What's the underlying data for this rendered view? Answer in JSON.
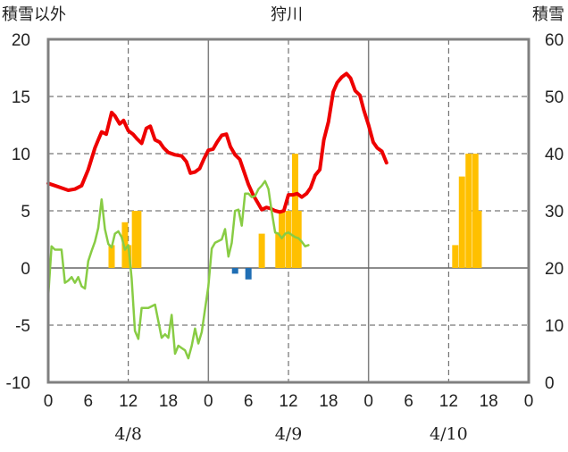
{
  "chart_data": {
    "type": "bar+line",
    "title": "狩川",
    "left_axis_label": "積雪以外",
    "right_axis_label": "積雪",
    "y_left": {
      "min": -10,
      "max": 20,
      "ticks": [
        "20",
        "15",
        "10",
        "5",
        "0",
        "-5",
        "-10"
      ],
      "tick_values": [
        20,
        15,
        10,
        5,
        0,
        -5,
        -10
      ]
    },
    "y_right": {
      "min": 0,
      "max": 60,
      "ticks": [
        "60",
        "50",
        "40",
        "30",
        "20",
        "10",
        "0"
      ],
      "tick_values": [
        60,
        50,
        40,
        30,
        20,
        10,
        0
      ]
    },
    "x": {
      "min_hour": 0,
      "max_hour": 72,
      "tick_hours": [
        0,
        6,
        12,
        18,
        24,
        30,
        36,
        42,
        48,
        54,
        60,
        66,
        72
      ],
      "tick_labels": [
        "0",
        "6",
        "12",
        "18",
        "0",
        "6",
        "12",
        "18",
        "0",
        "6",
        "12",
        "18",
        "0"
      ]
    },
    "date_labels": [
      "4/8",
      "4/9",
      "4/10"
    ],
    "date_label_hours": [
      12,
      36,
      60
    ],
    "day_divider_hours": [
      24,
      48
    ],
    "dashed_hours": [
      12,
      36,
      60
    ],
    "dashed_y_left": [
      15,
      10,
      5,
      -5
    ],
    "grid": true,
    "colors": {
      "red": "#ee0000",
      "green": "#88cc44",
      "orange": "#ffc000",
      "blue": "#1f6eb4",
      "purple": "#7030a0",
      "frame": "#808080"
    },
    "series": [
      {
        "color": "red",
        "axis": "left",
        "type": "line",
        "points": [
          [
            0,
            7.4
          ],
          [
            1,
            7.2
          ],
          [
            2,
            7.0
          ],
          [
            3,
            6.8
          ],
          [
            4,
            6.9
          ],
          [
            5,
            7.2
          ],
          [
            6,
            8.6
          ],
          [
            7,
            10.5
          ],
          [
            7.5,
            11.2
          ],
          [
            8,
            11.9
          ],
          [
            8.7,
            11.7
          ],
          [
            9.5,
            13.6
          ],
          [
            10,
            13.3
          ],
          [
            10.7,
            12.6
          ],
          [
            11.3,
            12.9
          ],
          [
            12,
            12.0
          ],
          [
            12.7,
            11.7
          ],
          [
            13.3,
            11.3
          ],
          [
            14,
            10.9
          ],
          [
            14.7,
            12.2
          ],
          [
            15.3,
            12.4
          ],
          [
            16,
            11.2
          ],
          [
            16.7,
            11.0
          ],
          [
            17.3,
            10.5
          ],
          [
            18,
            10.1
          ],
          [
            19,
            9.9
          ],
          [
            20,
            9.8
          ],
          [
            20.7,
            9.3
          ],
          [
            21.3,
            8.3
          ],
          [
            22,
            8.4
          ],
          [
            22.7,
            8.7
          ],
          [
            23.3,
            9.5
          ],
          [
            24,
            10.3
          ],
          [
            24.7,
            10.4
          ],
          [
            25.3,
            11.0
          ],
          [
            26,
            11.6
          ],
          [
            26.7,
            11.7
          ],
          [
            27.3,
            10.6
          ],
          [
            28,
            9.9
          ],
          [
            28.7,
            9.5
          ],
          [
            29.3,
            8.5
          ],
          [
            30,
            7.3
          ],
          [
            30.7,
            6.4
          ],
          [
            31.3,
            5.8
          ],
          [
            32,
            5.1
          ],
          [
            32.7,
            5.3
          ],
          [
            33.3,
            5.2
          ],
          [
            34,
            5.0
          ],
          [
            34.7,
            4.9
          ],
          [
            35.3,
            5.0
          ],
          [
            36,
            6.4
          ],
          [
            36.7,
            6.4
          ],
          [
            37.3,
            6.5
          ],
          [
            38,
            6.2
          ],
          [
            38.7,
            6.5
          ],
          [
            39.3,
            7.0
          ],
          [
            40,
            8.1
          ],
          [
            40.7,
            8.6
          ],
          [
            41.3,
            11.2
          ],
          [
            42,
            12.8
          ],
          [
            42.7,
            15.4
          ],
          [
            43.3,
            16.2
          ],
          [
            44,
            16.7
          ],
          [
            44.7,
            17.0
          ],
          [
            45.3,
            16.6
          ],
          [
            46,
            15.5
          ],
          [
            46.7,
            15.1
          ],
          [
            47.3,
            13.8
          ],
          [
            48,
            12.5
          ],
          [
            48.7,
            11.0
          ],
          [
            49.3,
            10.5
          ],
          [
            50,
            10.2
          ],
          [
            50.7,
            9.2
          ]
        ]
      },
      {
        "color": "green",
        "axis": "left",
        "type": "line",
        "points": [
          [
            0,
            -2.5
          ],
          [
            0.5,
            1.9
          ],
          [
            1,
            1.6
          ],
          [
            2,
            1.6
          ],
          [
            2.5,
            -1.3
          ],
          [
            3,
            -1.1
          ],
          [
            3.5,
            -0.8
          ],
          [
            4,
            -1.3
          ],
          [
            4.5,
            -0.8
          ],
          [
            5,
            -1.6
          ],
          [
            5.5,
            -1.8
          ],
          [
            6,
            0.6
          ],
          [
            6.5,
            1.5
          ],
          [
            7,
            2.3
          ],
          [
            7.5,
            3.5
          ],
          [
            8,
            6.0
          ],
          [
            8.5,
            3.4
          ],
          [
            9,
            2.1
          ],
          [
            9.5,
            1.8
          ],
          [
            10,
            3.0
          ],
          [
            10.5,
            3.2
          ],
          [
            11,
            2.7
          ],
          [
            11.5,
            1.6
          ],
          [
            12,
            2.0
          ],
          [
            12.5,
            -0.9
          ],
          [
            13,
            -5.5
          ],
          [
            13.5,
            -6.2
          ],
          [
            14,
            -3.5
          ],
          [
            15,
            -3.5
          ],
          [
            16,
            -3.2
          ],
          [
            17,
            -6.1
          ],
          [
            17.5,
            -5.8
          ],
          [
            18,
            -6.1
          ],
          [
            18.5,
            -4.1
          ],
          [
            19,
            -7.5
          ],
          [
            19.5,
            -6.8
          ],
          [
            20,
            -7.0
          ],
          [
            20.5,
            -7.2
          ],
          [
            21,
            -7.9
          ],
          [
            21.5,
            -6.8
          ],
          [
            22,
            -5.3
          ],
          [
            22.5,
            -6.6
          ],
          [
            23,
            -5.6
          ],
          [
            24,
            -1.6
          ],
          [
            24.5,
            1.7
          ],
          [
            25,
            2.2
          ],
          [
            26,
            2.5
          ],
          [
            26.5,
            3.4
          ],
          [
            27,
            1.0
          ],
          [
            27.5,
            2.2
          ],
          [
            28,
            5.0
          ],
          [
            28.5,
            5.1
          ],
          [
            29,
            3.7
          ],
          [
            29.5,
            6.5
          ],
          [
            30,
            6.5
          ],
          [
            30.5,
            6.2
          ],
          [
            31,
            6.3
          ],
          [
            31.5,
            6.9
          ],
          [
            32,
            7.2
          ],
          [
            32.5,
            7.6
          ],
          [
            33,
            6.9
          ],
          [
            33.5,
            4.9
          ],
          [
            34,
            3.1
          ],
          [
            34.5,
            3.0
          ],
          [
            35,
            2.6
          ],
          [
            35.5,
            3.0
          ],
          [
            36,
            3.1
          ],
          [
            36.5,
            2.9
          ],
          [
            37,
            2.7
          ],
          [
            37.5,
            2.6
          ],
          [
            38,
            2.3
          ],
          [
            38.5,
            1.9
          ],
          [
            39,
            2.0
          ]
        ]
      },
      {
        "color": "purple",
        "axis": "right",
        "type": "line",
        "points": [
          [
            0,
            0
          ],
          [
            72,
            0
          ]
        ]
      },
      {
        "color": "orange",
        "axis": "left",
        "type": "bar",
        "points": [
          [
            9.5,
            2
          ],
          [
            11.5,
            4
          ],
          [
            12,
            2
          ],
          [
            13,
            5
          ],
          [
            13.5,
            5
          ],
          [
            32,
            3
          ],
          [
            34.5,
            3
          ],
          [
            35,
            5
          ],
          [
            36,
            5
          ],
          [
            37,
            10
          ],
          [
            37.5,
            5
          ],
          [
            61,
            2
          ],
          [
            62,
            8
          ],
          [
            63,
            10
          ],
          [
            64,
            10
          ],
          [
            64.5,
            5
          ]
        ]
      },
      {
        "color": "blue",
        "axis": "left",
        "type": "bar",
        "points": [
          [
            28,
            -0.5
          ],
          [
            30,
            -1.0
          ]
        ]
      }
    ]
  }
}
